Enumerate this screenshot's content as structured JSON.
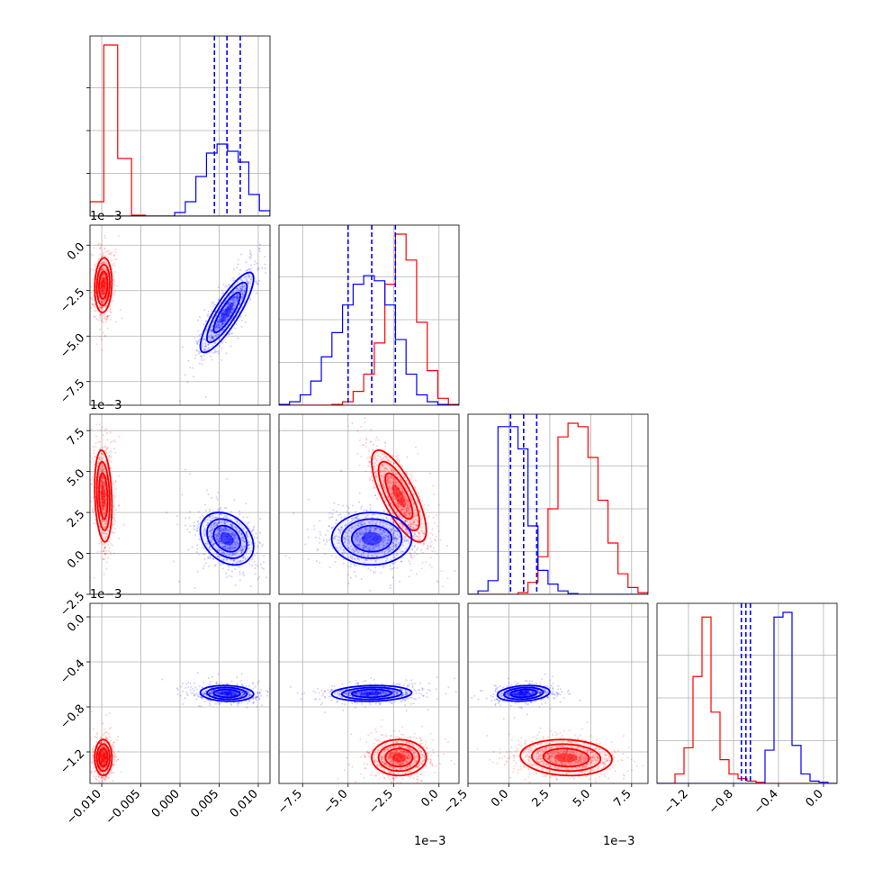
{
  "chart_data": {
    "type": "scatter",
    "grid": true,
    "legend": "none",
    "colors": {
      "red": "#ff0000",
      "blue": "#0000ff",
      "grid": "#b0b0b0"
    },
    "parameters": [
      {
        "range": [
          -0.0115,
          0.0115
        ],
        "ticks": [
          -0.01,
          -0.005,
          0.0,
          0.005,
          0.01
        ],
        "tick_labels": [
          "−0.010",
          "−0.005",
          "0.000",
          "0.005",
          "0.010"
        ],
        "offset_label": ""
      },
      {
        "range": [
          -0.0088,
          0.0011
        ],
        "ticks": [
          0.0,
          -0.0025,
          -0.005,
          -0.0075
        ],
        "tick_labels": [
          "0.0",
          "−2.5",
          "−5.0",
          "−7.5"
        ],
        "offset_label": "1e−3"
      },
      {
        "range": [
          -0.0025,
          0.0085
        ],
        "ticks": [
          0.0075,
          0.005,
          0.0025,
          0.0,
          -0.0025
        ],
        "tick_labels": [
          "7.5",
          "5.0",
          "2.5",
          "0.0",
          "−2.5"
        ],
        "offset_label": "1e−3"
      },
      {
        "range": [
          -1.48,
          0.12
        ],
        "ticks": [
          0.0,
          -0.4,
          -0.8,
          -1.2
        ],
        "tick_labels": [
          "0.0",
          "−0.4",
          "−0.8",
          "−1.2"
        ],
        "offset_label": ""
      }
    ],
    "y_offset_labels": [
      "1e−3",
      "1e−3",
      "1e−3"
    ],
    "x_offset_labels": [
      "1e−3",
      "1e−3"
    ],
    "series": [
      {
        "color": "red",
        "mean": [
          -0.0098,
          -0.0022,
          0.0035,
          -1.25
        ],
        "std": [
          0.00055,
          0.00075,
          0.0014,
          0.08
        ],
        "hist_counts": [
          [
            8,
            95,
            32,
            0.5,
            0,
            0,
            0,
            0,
            0,
            0,
            0,
            0,
            0
          ],
          [
            0,
            0,
            0,
            0,
            0,
            0.5,
            2,
            8,
            18,
            36,
            70,
            99,
            84,
            48,
            20,
            4,
            0.5
          ],
          [
            0,
            0,
            0,
            0,
            0,
            1,
            7,
            22,
            50,
            92,
            100,
            98,
            80,
            55,
            30,
            12,
            4,
            1
          ],
          [
            0,
            0,
            4,
            15,
            45,
            70,
            30,
            10,
            4,
            2,
            1,
            0.5,
            0,
            0,
            0,
            0,
            0,
            0,
            0,
            0
          ]
        ]
      },
      {
        "color": "blue",
        "mean": [
          0.006,
          -0.0037,
          0.0009,
          -0.68
        ],
        "std": [
          0.0017,
          0.0011,
          0.0008,
          0.035
        ],
        "quantiles": [
          [
            0.0044,
            0.006,
            0.0077
          ],
          [
            -0.005,
            -0.0037,
            -0.0024
          ],
          [
            0.0001,
            0.0009,
            0.0017
          ],
          [
            -0.73,
            -0.69,
            -0.65
          ]
        ],
        "hist_counts": [
          [
            0,
            0,
            0,
            0,
            0,
            0,
            0,
            0,
            2,
            8,
            22,
            35,
            40,
            36,
            30,
            12,
            3
          ],
          [
            0.5,
            2,
            6,
            14,
            28,
            42,
            58,
            70,
            75,
            72,
            58,
            38,
            18,
            6,
            2,
            0.5,
            0
          ],
          [
            0,
            2,
            8,
            98,
            98,
            85,
            40,
            14,
            6,
            2,
            0.5,
            0,
            0,
            0,
            0,
            0,
            0,
            0
          ],
          [
            0,
            0,
            0,
            0,
            0,
            0,
            0,
            0,
            0,
            0,
            0,
            0,
            14,
            70,
            72,
            16,
            4,
            1,
            0.5,
            0
          ]
        ]
      }
    ]
  }
}
